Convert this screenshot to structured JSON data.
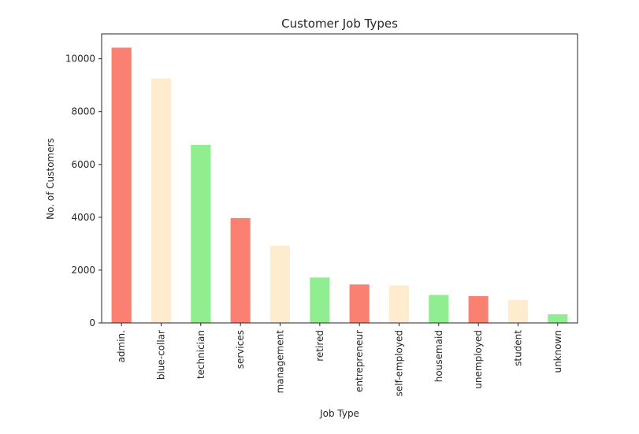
{
  "chart_data": {
    "type": "bar",
    "title": "Customer Job Types",
    "xlabel": "Job Type",
    "ylabel": "No. of Customers",
    "categories": [
      "admin.",
      "blue-collar",
      "technician",
      "services",
      "management",
      "retired",
      "entrepreneur",
      "self-employed",
      "housemaid",
      "unemployed",
      "student",
      "unknown"
    ],
    "values": [
      10422,
      9254,
      6743,
      3969,
      2924,
      1720,
      1456,
      1421,
      1060,
      1014,
      875,
      330
    ],
    "bar_colors": [
      "#fa8072",
      "#ffebcd",
      "#90ee90",
      "#fa8072",
      "#ffebcd",
      "#90ee90",
      "#fa8072",
      "#ffebcd",
      "#90ee90",
      "#fa8072",
      "#ffebcd",
      "#90ee90"
    ],
    "ylim": [
      0,
      10943
    ],
    "yticks": [
      0,
      2000,
      4000,
      6000,
      8000,
      10000
    ],
    "grid": false,
    "legend": "none"
  }
}
